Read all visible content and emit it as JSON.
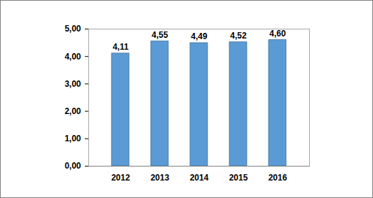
{
  "chart_data": {
    "type": "bar",
    "categories": [
      "2012",
      "2013",
      "2014",
      "2015",
      "2016"
    ],
    "values": [
      4.11,
      4.55,
      4.49,
      4.52,
      4.6
    ],
    "value_labels": [
      "4,11",
      "4,55",
      "4,49",
      "4,52",
      "4,60"
    ],
    "color": "#5b9bd5",
    "ylim": [
      0,
      5
    ],
    "yticks": [
      {
        "value": 0,
        "label": "0,00"
      },
      {
        "value": 1,
        "label": "1,00"
      },
      {
        "value": 2,
        "label": "2,00"
      },
      {
        "value": 3,
        "label": "3,00"
      },
      {
        "value": 4,
        "label": "4,00"
      },
      {
        "value": 5,
        "label": "5,00"
      }
    ],
    "grid": false,
    "data_labels": true
  }
}
